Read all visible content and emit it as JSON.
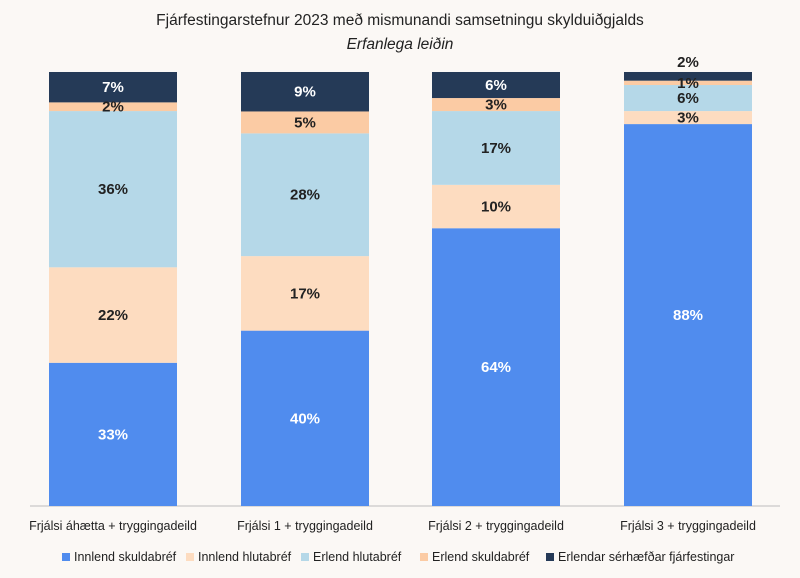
{
  "chart_data": {
    "type": "bar",
    "stacked": true,
    "title": "Fjárfestingarstefnur 2023 með mismunandi samsetningu skylduiðgjalds",
    "subtitle": "Erfanlega leiðin",
    "categories": [
      "Frjálsi áhætta + tryggingadeild",
      "Frjálsi 1 + tryggingadeild",
      "Frjálsi 2 + tryggingadeild",
      "Frjálsi 3 + tryggingadeild"
    ],
    "series": [
      {
        "name": "Innlend skuldabréf",
        "color": "#508cee",
        "label_color": "#ffffff",
        "values": [
          33,
          40,
          64,
          88
        ],
        "labels": [
          "33%",
          "40%",
          "64%",
          "88%"
        ]
      },
      {
        "name": "Innlend hlutabréf",
        "color": "#fddcc0",
        "label_color": "#222222",
        "values": [
          22,
          17,
          10,
          3
        ],
        "labels": [
          "22%",
          "17%",
          "10%",
          "3%"
        ]
      },
      {
        "name": "Erlend hlutabréf",
        "color": "#b5d8e8",
        "label_color": "#222222",
        "values": [
          36,
          28,
          17,
          6
        ],
        "labels": [
          "36%",
          "28%",
          "17%",
          "6%"
        ]
      },
      {
        "name": "Erlend skuldabréf",
        "color": "#fbcba4",
        "label_color": "#222222",
        "values": [
          2,
          5,
          3,
          1
        ],
        "labels": [
          "2%",
          "5%",
          "3%",
          "1%"
        ]
      },
      {
        "name": "Erlendar sérhæfðar fjárfestingar",
        "color": "#253a57",
        "label_color": "#ffffff",
        "values": [
          7,
          9,
          6,
          2
        ],
        "labels": [
          "7%",
          "9%",
          "6%",
          "2%"
        ]
      }
    ],
    "ylim": [
      0,
      100
    ],
    "grid": false,
    "legend": "bottom"
  }
}
